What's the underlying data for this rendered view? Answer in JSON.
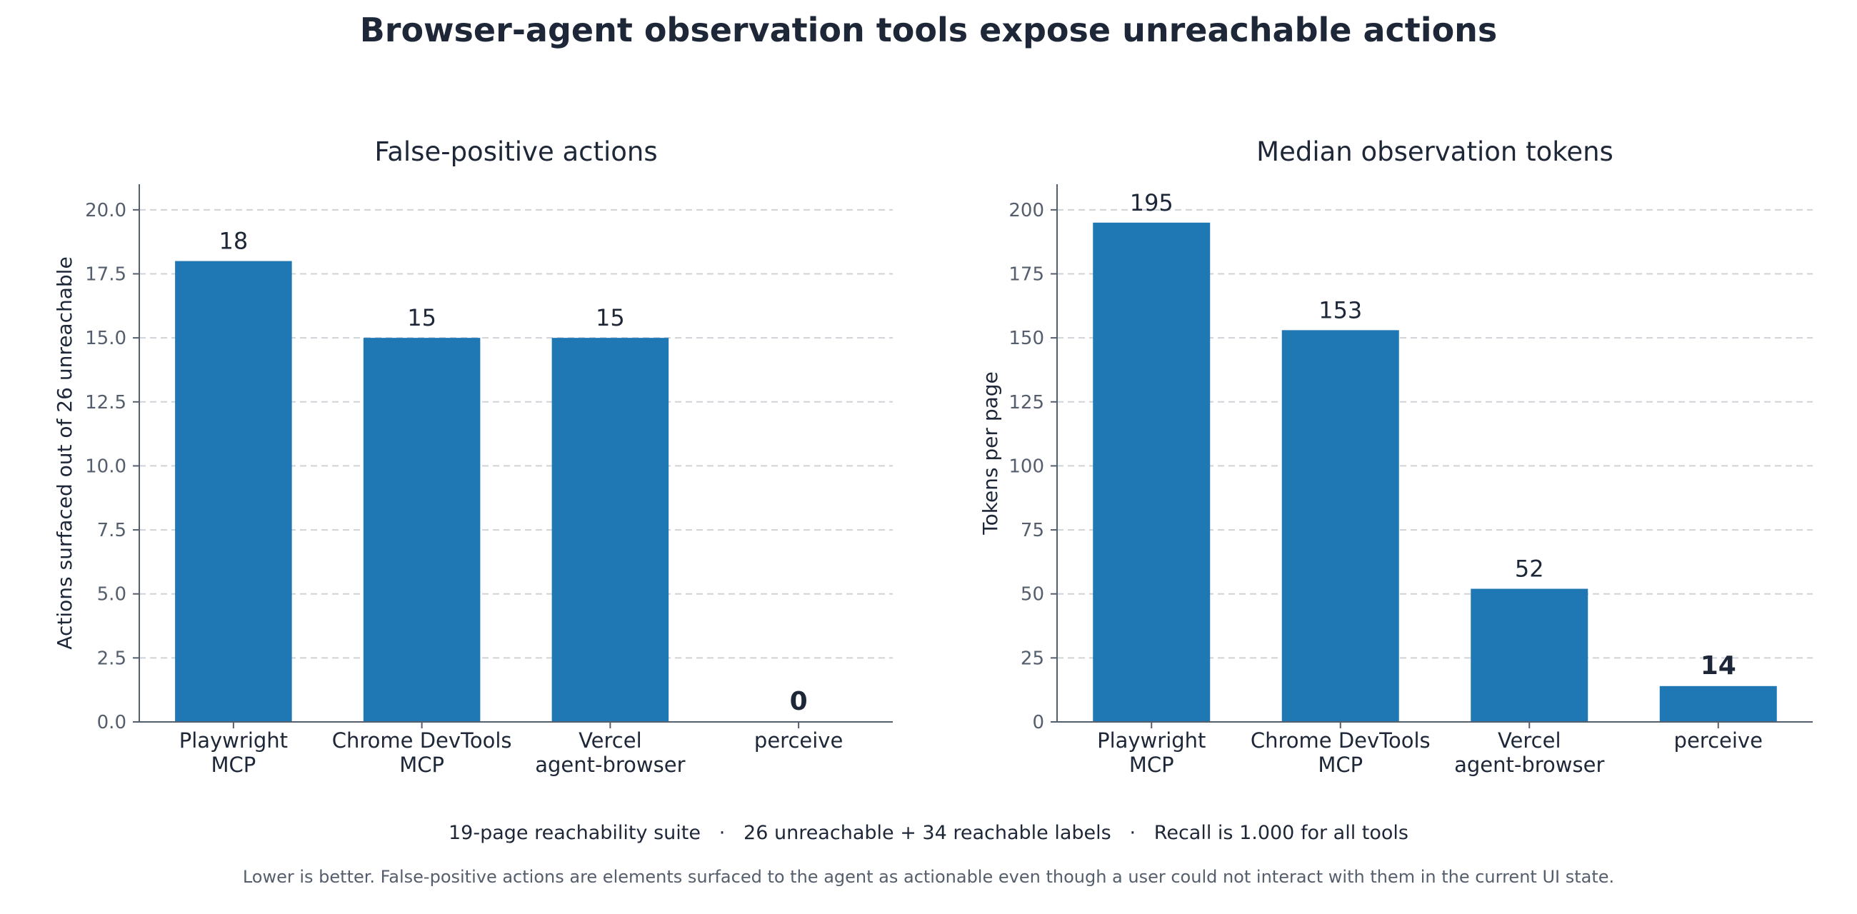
{
  "figure": {
    "title": "Browser-agent observation tools expose unreachable actions",
    "footer_summary": "19-page reachability suite   ·   26 unreachable + 34 reachable labels   ·   Recall is 1.000 for all tools",
    "footer_note": "Lower is better. False-positive actions are elements surfaced to the agent as actionable even though a user could not interact with them in the current UI state."
  },
  "colors": {
    "bar": "#1f77b4",
    "grid": "#cfd3d8",
    "axis": "#555e6c",
    "text": "#1e2738"
  },
  "chart_data": [
    {
      "type": "bar",
      "title": "False-positive actions",
      "ylabel": "Actions surfaced out of 26 unreachable",
      "xlabel": "",
      "categories": [
        "Playwright\nMCP",
        "Chrome DevTools\nMCP",
        "Vercel\nagent-browser",
        "perceive"
      ],
      "values": [
        18,
        15,
        15,
        0
      ],
      "data_labels": [
        "18",
        "15",
        "15",
        "0"
      ],
      "highlight_index": 3,
      "ylim": [
        0,
        21
      ],
      "yticks": [
        0,
        2.5,
        5,
        7.5,
        10,
        12.5,
        15,
        17.5,
        20
      ],
      "ytick_labels": [
        "0.0",
        "2.5",
        "5.0",
        "7.5",
        "10.0",
        "12.5",
        "15.0",
        "17.5",
        "20.0"
      ],
      "grid": "y-dashed"
    },
    {
      "type": "bar",
      "title": "Median observation tokens",
      "ylabel": "Tokens per page",
      "xlabel": "",
      "categories": [
        "Playwright\nMCP",
        "Chrome DevTools\nMCP",
        "Vercel\nagent-browser",
        "perceive"
      ],
      "values": [
        195,
        153,
        52,
        14
      ],
      "data_labels": [
        "195",
        "153",
        "52",
        "14"
      ],
      "highlight_index": 3,
      "ylim": [
        0,
        210
      ],
      "yticks": [
        0,
        25,
        50,
        75,
        100,
        125,
        150,
        175,
        200
      ],
      "ytick_labels": [
        "0",
        "25",
        "50",
        "75",
        "100",
        "125",
        "150",
        "175",
        "200"
      ],
      "grid": "y-dashed"
    }
  ]
}
